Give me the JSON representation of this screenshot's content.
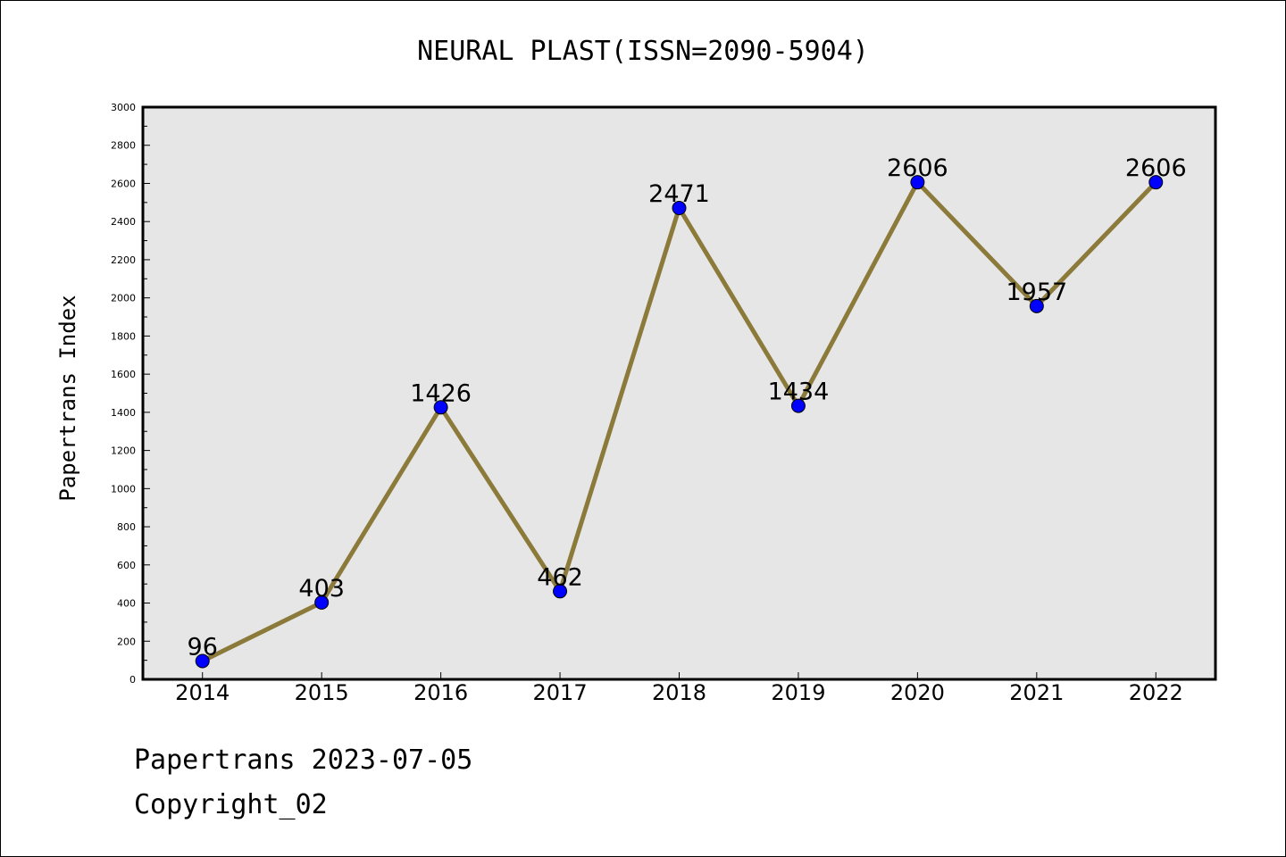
{
  "chart_data": {
    "type": "line",
    "title": "NEURAL PLAST(ISSN=2090-5904)",
    "xlabel": "",
    "ylabel": "Papertrans Index",
    "categories": [
      "2014",
      "2015",
      "2016",
      "2017",
      "2018",
      "2019",
      "2020",
      "2021",
      "2022"
    ],
    "series": [
      {
        "values": [
          96,
          403,
          1426,
          462,
          2471,
          1434,
          2606,
          1957,
          2606
        ]
      }
    ],
    "data_labels": [
      "96",
      "403",
      "1426",
      "462",
      "2471",
      "1434",
      "2606",
      "1957",
      "2606"
    ],
    "ylim": [
      0,
      3000
    ],
    "yticks": [
      "0",
      "200",
      "400",
      "600",
      "800",
      "1000",
      "1200",
      "1400",
      "1600",
      "1800",
      "2000",
      "2200",
      "2400",
      "2600",
      "2800",
      "3000"
    ],
    "grid": false,
    "colors": {
      "line": "#8b7a3a",
      "marker": "#0000ff",
      "plot_background": "#e6e6e6"
    }
  },
  "footer": {
    "line1": "Papertrans 2023-07-05",
    "line2": "Copyright_02"
  }
}
